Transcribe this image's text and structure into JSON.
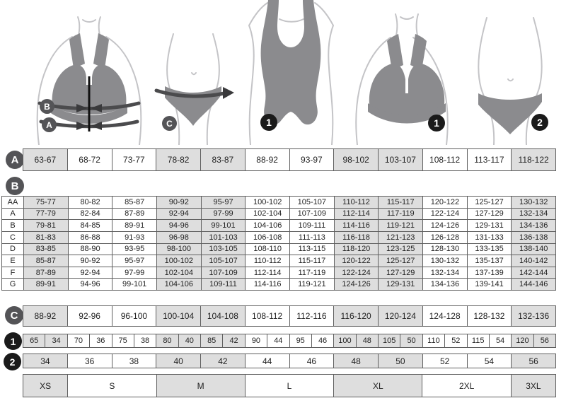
{
  "colors": {
    "shaded_cell": "#dedede",
    "border": "#5f5f5f",
    "letter_badge": "#545457",
    "number_badge": "#1a1a1a",
    "garment": "#8b8b8e",
    "text": "#222222"
  },
  "figure_badges": {
    "bra_measure_b": "B",
    "bra_measure_a": "A",
    "hip_measure_c": "C",
    "bodysuit": "1",
    "bra": "1",
    "panty": "2"
  },
  "rows": {
    "a": {
      "badge": "A",
      "values": [
        "63-67",
        "68-72",
        "73-77",
        "78-82",
        "83-87",
        "88-92",
        "93-97",
        "98-102",
        "103-107",
        "108-112",
        "113-117",
        "118-122"
      ]
    },
    "b": {
      "badge": "B",
      "cup_rows": [
        {
          "label": "AA",
          "values": [
            "75-77",
            "80-82",
            "85-87",
            "90-92",
            "95-97",
            "100-102",
            "105-107",
            "110-112",
            "115-117",
            "120-122",
            "125-127",
            "130-132"
          ]
        },
        {
          "label": "A",
          "values": [
            "77-79",
            "82-84",
            "87-89",
            "92-94",
            "97-99",
            "102-104",
            "107-109",
            "112-114",
            "117-119",
            "122-124",
            "127-129",
            "132-134"
          ]
        },
        {
          "label": "B",
          "values": [
            "79-81",
            "84-85",
            "89-91",
            "94-96",
            "99-101",
            "104-106",
            "109-111",
            "114-116",
            "119-121",
            "124-126",
            "129-131",
            "134-136"
          ]
        },
        {
          "label": "C",
          "values": [
            "81-83",
            "86-88",
            "91-93",
            "96-98",
            "101-103",
            "106-108",
            "111-113",
            "116-118",
            "121-123",
            "126-128",
            "131-133",
            "136-138"
          ]
        },
        {
          "label": "D",
          "values": [
            "83-85",
            "88-90",
            "93-95",
            "98-100",
            "103-105",
            "108-110",
            "113-115",
            "118-120",
            "123-125",
            "128-130",
            "133-135",
            "138-140"
          ]
        },
        {
          "label": "E",
          "values": [
            "85-87",
            "90-92",
            "95-97",
            "100-102",
            "105-107",
            "110-112",
            "115-117",
            "120-122",
            "125-127",
            "130-132",
            "135-137",
            "140-142"
          ]
        },
        {
          "label": "F",
          "values": [
            "87-89",
            "92-94",
            "97-99",
            "102-104",
            "107-109",
            "112-114",
            "117-119",
            "122-124",
            "127-129",
            "132-134",
            "137-139",
            "142-144"
          ]
        },
        {
          "label": "G",
          "values": [
            "89-91",
            "94-96",
            "99-101",
            "104-106",
            "109-111",
            "114-116",
            "119-121",
            "124-126",
            "129-131",
            "134-136",
            "139-141",
            "144-146"
          ]
        }
      ]
    },
    "c": {
      "badge": "C",
      "values": [
        "88-92",
        "92-96",
        "96-100",
        "100-104",
        "104-108",
        "108-112",
        "112-116",
        "116-120",
        "120-124",
        "124-128",
        "128-132",
        "132-136"
      ]
    },
    "band": {
      "badge": "1",
      "pairs": [
        [
          "65",
          "34"
        ],
        [
          "70",
          "36"
        ],
        [
          "75",
          "38"
        ],
        [
          "80",
          "40"
        ],
        [
          "85",
          "42"
        ],
        [
          "90",
          "44"
        ],
        [
          "95",
          "46"
        ],
        [
          "100",
          "48"
        ],
        [
          "105",
          "50"
        ],
        [
          "110",
          "52"
        ],
        [
          "115",
          "54"
        ],
        [
          "120",
          "56"
        ]
      ]
    },
    "eu": {
      "badge": "2",
      "values": [
        "34",
        "36",
        "38",
        "40",
        "42",
        "44",
        "46",
        "48",
        "50",
        "52",
        "54",
        "56"
      ]
    },
    "intl": {
      "cells": [
        {
          "label": "XS",
          "span": 1
        },
        {
          "label": "S",
          "span": 2
        },
        {
          "label": "M",
          "span": 2
        },
        {
          "label": "L",
          "span": 2
        },
        {
          "label": "XL",
          "span": 2
        },
        {
          "label": "2XL",
          "span": 2
        },
        {
          "label": "3XL",
          "span": 1
        }
      ]
    }
  }
}
